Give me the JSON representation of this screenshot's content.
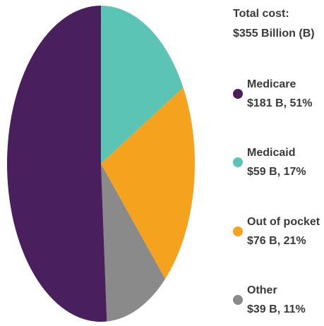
{
  "chart_data": {
    "type": "pie",
    "title": "Total cost:",
    "subtitle": "$355 Billion (B)",
    "categories": [
      "Medicaid",
      "Out of pocket",
      "Other",
      "Medicare"
    ],
    "values": [
      17,
      21,
      11,
      51
    ],
    "value_labels": [
      "$59 B, 17%",
      "$76 B, 21%",
      "$39 B, 11%",
      "$181 B, 51%"
    ],
    "colors": [
      "#5cc4b4",
      "#f5a31f",
      "#8a8a8a",
      "#4a1f5e"
    ],
    "legend_order": [
      3,
      0,
      1,
      2
    ]
  }
}
